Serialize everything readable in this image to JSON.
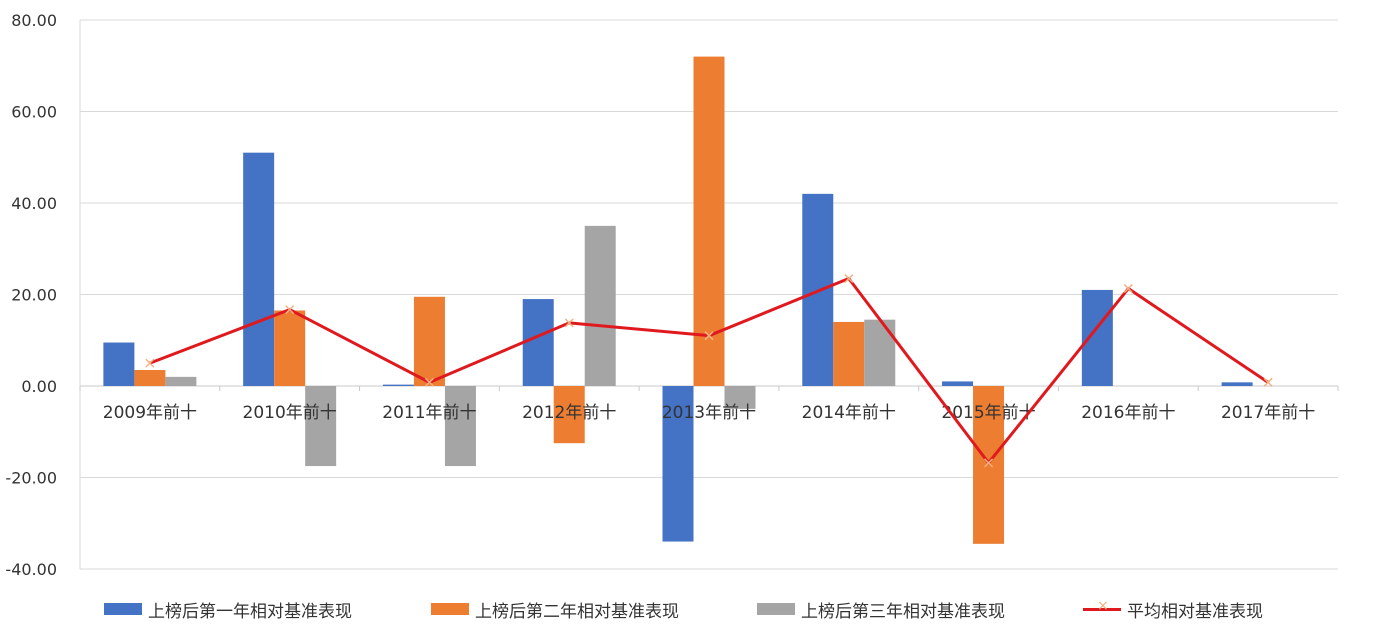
{
  "chart_data": {
    "type": "bar",
    "categories": [
      "2009年前十",
      "2010年前十",
      "2011年前十",
      "2012年前十",
      "2013年前十",
      "2014年前十",
      "2015年前十",
      "2016年前十",
      "2017年前十"
    ],
    "series": [
      {
        "name": "上榜后第一年相对基准表现",
        "type": "bar",
        "color": "#4472c4",
        "values": [
          9.5,
          51.0,
          0.3,
          19.0,
          -34.0,
          42.0,
          1.0,
          21.0,
          0.8
        ]
      },
      {
        "name": "上榜后第二年相对基准表现",
        "type": "bar",
        "color": "#ed7d31",
        "values": [
          3.5,
          16.5,
          19.5,
          -12.5,
          72.0,
          14.0,
          -34.5,
          null,
          null
        ]
      },
      {
        "name": "上榜后第三年相对基准表现",
        "type": "bar",
        "color": "#a5a5a5",
        "values": [
          2.0,
          -17.5,
          -17.5,
          35.0,
          -5.0,
          14.5,
          null,
          null,
          null
        ]
      },
      {
        "name": "平均相对基准表现",
        "type": "line",
        "color": "#e0191e",
        "marker_color": "#f4b183",
        "values": [
          5.0,
          16.7,
          0.8,
          13.8,
          11.0,
          23.5,
          -16.8,
          21.3,
          0.8
        ]
      }
    ],
    "ylim": [
      -40,
      80
    ],
    "yticks": [
      "80.00",
      "60.00",
      "40.00",
      "20.00",
      "0.00",
      "-20.00",
      "-40.00"
    ],
    "ytick_values": [
      80,
      60,
      40,
      20,
      0,
      -20,
      -40
    ],
    "grid": true,
    "legend_position": "bottom",
    "title": "",
    "xlabel": "",
    "ylabel": ""
  }
}
